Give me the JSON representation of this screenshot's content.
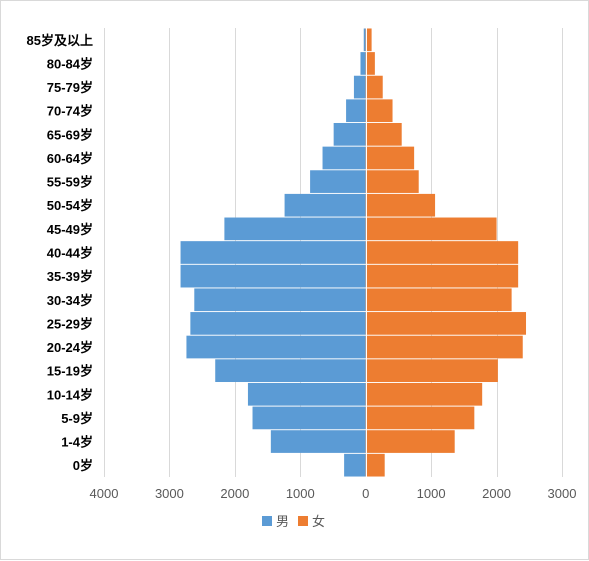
{
  "chart_data": {
    "type": "bar",
    "orientation": "horizontal",
    "chart_subtype": "population-pyramid",
    "categories": [
      "0岁",
      "1-4岁",
      "5-9岁",
      "10-14岁",
      "15-19岁",
      "20-24岁",
      "25-29岁",
      "30-34岁",
      "35-39岁",
      "40-44岁",
      "45-49岁",
      "50-54岁",
      "55-59岁",
      "60-64岁",
      "65-69岁",
      "70-74岁",
      "75-79岁",
      "80-84岁",
      "85岁及以上"
    ],
    "series": [
      {
        "name": "男",
        "color": "#5B9BD5",
        "values": [
          330,
          1450,
          1730,
          1800,
          2300,
          2740,
          2680,
          2620,
          2830,
          2830,
          2160,
          1240,
          850,
          660,
          490,
          300,
          180,
          80,
          30
        ]
      },
      {
        "name": "女",
        "color": "#ED7D31",
        "values": [
          290,
          1360,
          1660,
          1780,
          2020,
          2400,
          2450,
          2230,
          2330,
          2330,
          2000,
          1060,
          810,
          740,
          550,
          410,
          260,
          140,
          90
        ]
      }
    ],
    "xlim": [
      -4000,
      3000
    ],
    "xticks": [
      -4000,
      -3000,
      -2000,
      -1000,
      0,
      1000,
      2000,
      3000
    ],
    "xtick_labels": [
      "4000",
      "3000",
      "2000",
      "1000",
      "0",
      "1000",
      "2000",
      "3000"
    ],
    "grid": "vertical",
    "legend_position": "bottom",
    "title": "",
    "xlabel": "",
    "ylabel": ""
  }
}
